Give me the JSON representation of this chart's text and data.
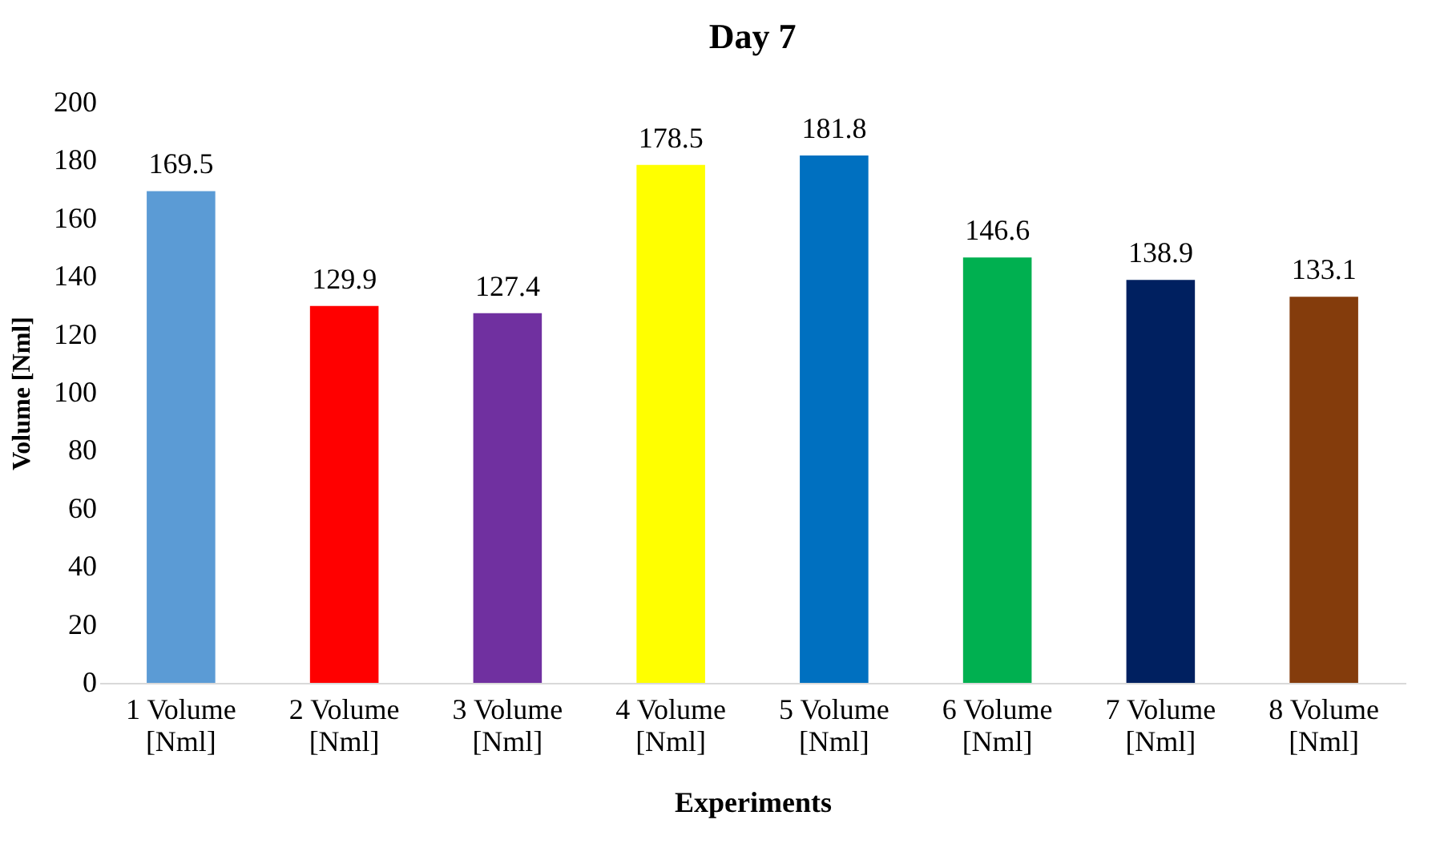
{
  "chart_data": {
    "type": "bar",
    "title": "Day 7",
    "xlabel": "Experiments",
    "ylabel": "Volume [Nml]",
    "categories": [
      "1 Volume [Nml]",
      "2 Volume [Nml]",
      "3 Volume [Nml]",
      "4 Volume [Nml]",
      "5 Volume [Nml]",
      "6 Volume [Nml]",
      "7 Volume [Nml]",
      "8 Volume [Nml]"
    ],
    "values": [
      169.5,
      129.9,
      127.4,
      178.5,
      181.8,
      146.6,
      138.9,
      133.1
    ],
    "colors": [
      "#5b9bd5",
      "#ff0000",
      "#7030a0",
      "#ffff00",
      "#0070c0",
      "#00b050",
      "#002060",
      "#843c0c"
    ],
    "ylim": [
      0,
      200
    ],
    "yticks": [
      0,
      20,
      40,
      60,
      80,
      100,
      120,
      140,
      160,
      180,
      200
    ],
    "data_labels": true,
    "grid": false,
    "legend": false
  }
}
